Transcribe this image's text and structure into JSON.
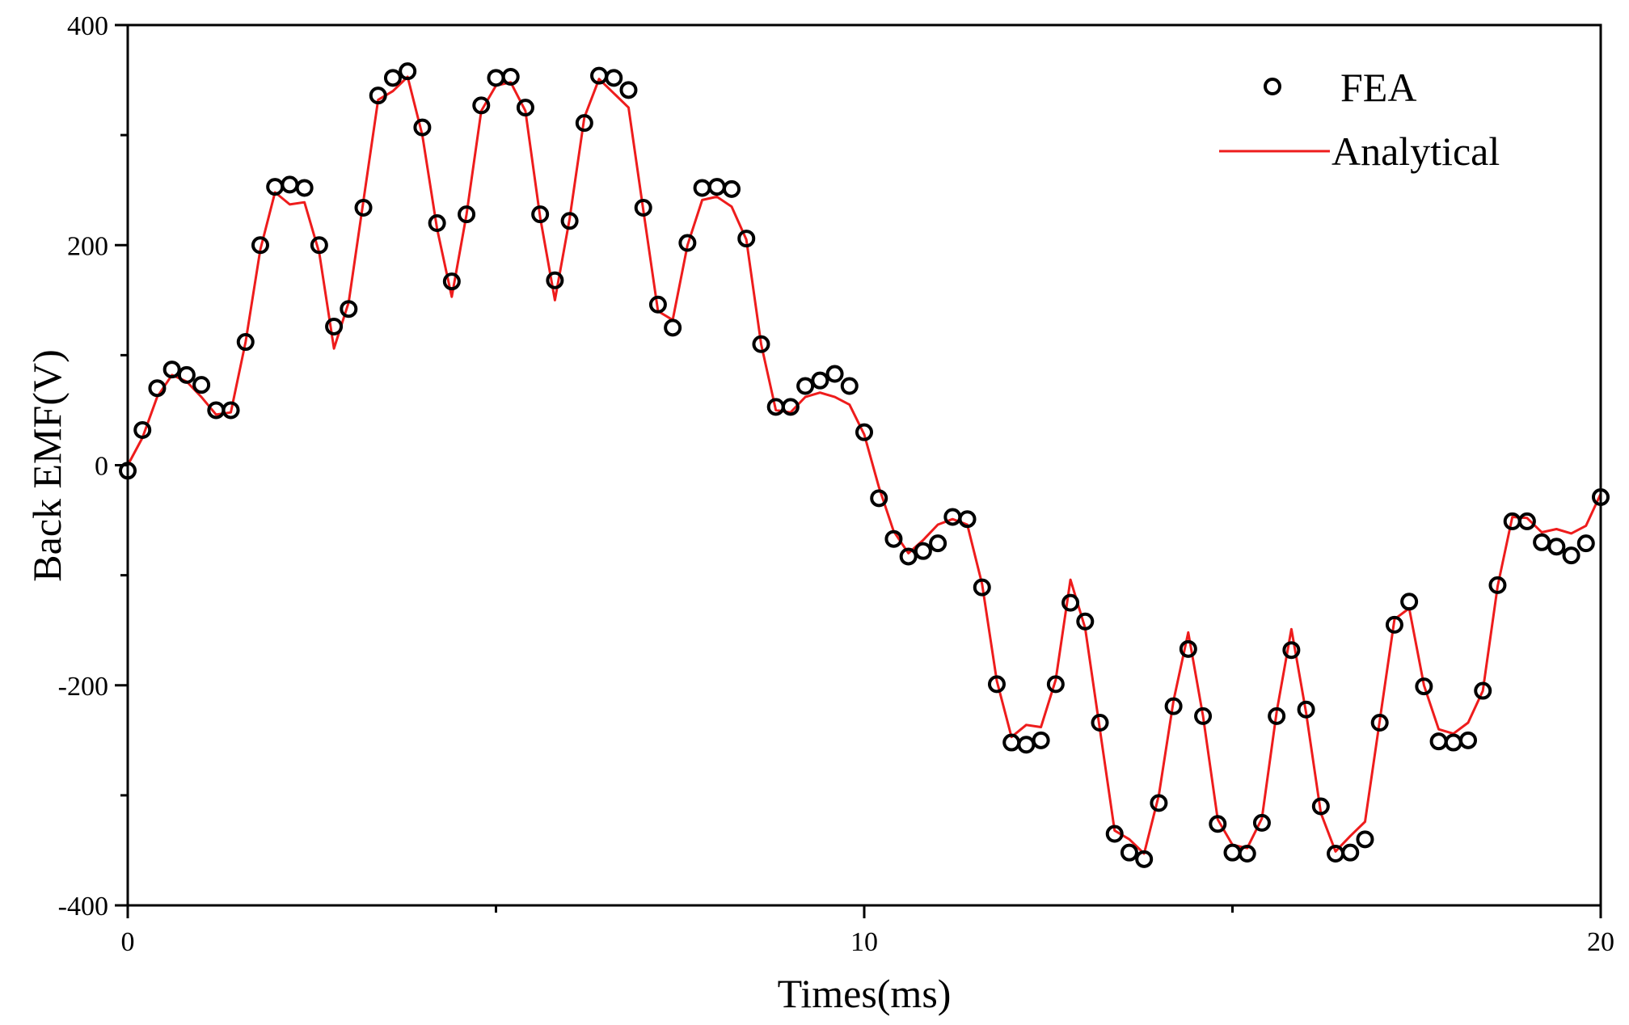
{
  "chart_data": {
    "type": "line",
    "xlabel": "Times(ms)",
    "ylabel": "Back EMF(V)",
    "xlim": [
      0,
      20
    ],
    "ylim": [
      -400,
      400
    ],
    "x_ticks": [
      0,
      10,
      20
    ],
    "x_minor_ticks": [
      5,
      15
    ],
    "y_ticks": [
      -400,
      -200,
      0,
      200,
      400
    ],
    "y_minor_ticks": [
      -300,
      -100,
      100,
      300
    ],
    "grid": false,
    "legend": "top-right",
    "colors": {
      "fea": "#000000",
      "analytical": "#ee1c1c"
    },
    "series": [
      {
        "name": "FEA",
        "style": "markers",
        "x": [
          0,
          0.2,
          0.4,
          0.6,
          0.8,
          1.0,
          1.2,
          1.4,
          1.6,
          1.8,
          2.0,
          2.2,
          2.4,
          2.6,
          2.8,
          3.0,
          3.2,
          3.4,
          3.6,
          3.8,
          4.0,
          4.2,
          4.4,
          4.6,
          4.8,
          5.0,
          5.2,
          5.4,
          5.6,
          5.8,
          6.0,
          6.2,
          6.4,
          6.6,
          6.8,
          7.0,
          7.2,
          7.4,
          7.6,
          7.8,
          8.0,
          8.2,
          8.4,
          8.6,
          8.8,
          9.0,
          9.2,
          9.4,
          9.6,
          9.8,
          10.0,
          10.2,
          10.4,
          10.6,
          10.8,
          11.0,
          11.2,
          11.4,
          11.6,
          11.8,
          12.0,
          12.2,
          12.4,
          12.6,
          12.8,
          13.0,
          13.2,
          13.4,
          13.6,
          13.8,
          14.0,
          14.2,
          14.4,
          14.6,
          14.8,
          15.0,
          15.2,
          15.4,
          15.6,
          15.8,
          16.0,
          16.2,
          16.4,
          16.6,
          16.8,
          17.0,
          17.2,
          17.4,
          17.6,
          17.8,
          18.0,
          18.2,
          18.4,
          18.6,
          18.8,
          19.0,
          19.2,
          19.4,
          19.6,
          19.8,
          20.0
        ],
        "y": [
          -5,
          32,
          70,
          87,
          82,
          73,
          50,
          50,
          112,
          200,
          253,
          255,
          252,
          200,
          126,
          142,
          234,
          336,
          352,
          358,
          307,
          220,
          167,
          228,
          327,
          352,
          353,
          325,
          228,
          168,
          222,
          311,
          354,
          352,
          341,
          234,
          146,
          125,
          202,
          252,
          253,
          251,
          206,
          110,
          53,
          53,
          72,
          77,
          83,
          72,
          30,
          -30,
          -67,
          -83,
          -78,
          -71,
          -47,
          -49,
          -111,
          -199,
          -252,
          -254,
          -250,
          -199,
          -125,
          -142,
          -234,
          -335,
          -352,
          -358,
          -307,
          -219,
          -167,
          -228,
          -326,
          -352,
          -353,
          -325,
          -228,
          -168,
          -222,
          -310,
          -353,
          -352,
          -340,
          -234,
          -145,
          -124,
          -201,
          -251,
          -252,
          -250,
          -205,
          -109,
          -51,
          -51,
          -70,
          -74,
          -82,
          -71,
          -29
        ]
      },
      {
        "name": "Analytical",
        "style": "line",
        "x": [
          0,
          0.2,
          0.4,
          0.6,
          0.8,
          1.0,
          1.2,
          1.4,
          1.6,
          1.8,
          2.0,
          2.2,
          2.4,
          2.6,
          2.8,
          3.0,
          3.2,
          3.4,
          3.6,
          3.8,
          4.0,
          4.2,
          4.4,
          4.6,
          4.8,
          5.0,
          5.2,
          5.4,
          5.6,
          5.8,
          6.0,
          6.2,
          6.4,
          6.6,
          6.8,
          7.0,
          7.2,
          7.4,
          7.6,
          7.8,
          8.0,
          8.2,
          8.4,
          8.6,
          8.8,
          9.0,
          9.2,
          9.4,
          9.6,
          9.8,
          10.0,
          10.2,
          10.4,
          10.6,
          10.8,
          11.0,
          11.2,
          11.4,
          11.6,
          11.8,
          12.0,
          12.2,
          12.4,
          12.6,
          12.8,
          13.0,
          13.2,
          13.4,
          13.6,
          13.8,
          14.0,
          14.2,
          14.4,
          14.6,
          14.8,
          15.0,
          15.2,
          15.4,
          15.6,
          15.8,
          16.0,
          16.2,
          16.4,
          16.6,
          16.8,
          17.0,
          17.2,
          17.4,
          17.6,
          17.8,
          18.0,
          18.2,
          18.4,
          18.6,
          18.8,
          19.0,
          19.2,
          19.4,
          19.6,
          19.8,
          20.0
        ],
        "y": [
          0,
          25,
          62,
          82,
          76,
          62,
          46,
          48,
          112,
          196,
          248,
          237,
          239,
          193,
          106,
          148,
          240,
          332,
          340,
          353,
          300,
          215,
          153,
          228,
          322,
          345,
          348,
          322,
          225,
          150,
          224,
          316,
          351,
          338,
          325,
          232,
          140,
          132,
          200,
          241,
          244,
          235,
          205,
          110,
          50,
          48,
          62,
          66,
          62,
          55,
          28,
          -20,
          -60,
          -80,
          -68,
          -54,
          -49,
          -54,
          -108,
          -196,
          -247,
          -236,
          -238,
          -195,
          -104,
          -148,
          -240,
          -332,
          -340,
          -353,
          -300,
          -214,
          -152,
          -228,
          -322,
          -345,
          -348,
          -321,
          -224,
          -149,
          -225,
          -316,
          -351,
          -337,
          -324,
          -232,
          -140,
          -130,
          -200,
          -240,
          -244,
          -234,
          -205,
          -110,
          -47,
          -48,
          -61,
          -58,
          -62,
          -55,
          -26
        ]
      }
    ]
  }
}
